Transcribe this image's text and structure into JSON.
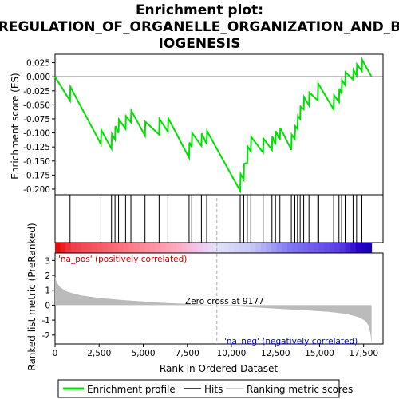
{
  "chart_data": {
    "type": "line",
    "title_lines": [
      "Enrichment plot:",
      "REGULATION_OF_ORGANELLE_ORGANIZATION_AND_B",
      "IOGENESIS"
    ],
    "enrichment_panel": {
      "ylabel": "Enrichment score (ES)",
      "ylim": [
        -0.21,
        0.04
      ],
      "xlim": [
        0,
        18600
      ],
      "yticks": [
        0.025,
        0.0,
        -0.025,
        -0.05,
        -0.075,
        -0.1,
        -0.125,
        -0.15,
        -0.175,
        -0.2
      ],
      "ytick_labels": [
        "0.025",
        "0.000",
        "-0.025",
        "-0.050",
        "-0.075",
        "-0.100",
        "-0.125",
        "-0.150",
        "-0.175",
        "-0.200"
      ],
      "line_color": "#00e000",
      "es_curve": {
        "x": [
          0,
          850,
          870,
          2600,
          2620,
          3200,
          3220,
          3400,
          3420,
          3600,
          3620,
          4000,
          4020,
          4300,
          4320,
          5100,
          5120,
          5900,
          5920,
          6400,
          6420,
          7600,
          7620,
          7750,
          7770,
          8300,
          8320,
          8600,
          8620,
          10500,
          10520,
          10700,
          10720,
          10900,
          10920,
          11100,
          11120,
          11800,
          11820,
          12300,
          12320,
          12500,
          12520,
          12750,
          12770,
          13400,
          13420,
          13600,
          13620,
          13750,
          13770,
          13900,
          13920,
          14100,
          14120,
          14400,
          14420,
          14900,
          14920,
          15800,
          15820,
          16100,
          16120,
          16250,
          16270,
          16450,
          16470,
          16900,
          16920,
          17100,
          17120,
          17400,
          17420,
          17950
        ],
        "y": [
          0.0,
          -0.043,
          -0.018,
          -0.12,
          -0.095,
          -0.128,
          -0.102,
          -0.112,
          -0.088,
          -0.1,
          -0.076,
          -0.093,
          -0.07,
          -0.081,
          -0.06,
          -0.105,
          -0.08,
          -0.103,
          -0.075,
          -0.098,
          -0.074,
          -0.144,
          -0.117,
          -0.125,
          -0.1,
          -0.123,
          -0.101,
          -0.12,
          -0.097,
          -0.203,
          -0.173,
          -0.183,
          -0.155,
          -0.153,
          -0.124,
          -0.133,
          -0.107,
          -0.135,
          -0.11,
          -0.13,
          -0.106,
          -0.121,
          -0.097,
          -0.113,
          -0.091,
          -0.13,
          -0.103,
          -0.111,
          -0.088,
          -0.093,
          -0.07,
          -0.075,
          -0.053,
          -0.058,
          -0.036,
          -0.051,
          -0.028,
          -0.042,
          -0.012,
          -0.058,
          -0.033,
          -0.045,
          -0.021,
          -0.03,
          -0.006,
          -0.015,
          0.008,
          -0.005,
          0.012,
          0.002,
          0.022,
          0.01,
          0.03,
          0.0
        ]
      }
    },
    "hits_panel": {
      "hit_positions": [
        850,
        2600,
        3200,
        3400,
        3600,
        4000,
        4300,
        5100,
        5900,
        6400,
        7600,
        7750,
        8300,
        8600,
        10500,
        10700,
        10900,
        11100,
        11800,
        12300,
        12500,
        12750,
        13400,
        13600,
        13750,
        13900,
        14100,
        14400,
        14900,
        14950,
        15800,
        16100,
        16250,
        16450,
        16900,
        17100,
        17400
      ]
    },
    "metric_panel": {
      "ylabel": "Ranked list metric (PreRanked)",
      "xlabel": "Rank in Ordered Dataset",
      "ylim": [
        -2.6,
        3.5
      ],
      "yticks": [
        3,
        2,
        1,
        0,
        -1,
        -2
      ],
      "ytick_labels": [
        "3",
        "2",
        "1",
        "0",
        "-1",
        "-2"
      ],
      "xticks": [
        0,
        2500,
        5000,
        7500,
        10000,
        12500,
        15000,
        17500
      ],
      "xtick_labels": [
        "0",
        "2,500",
        "5,000",
        "7,500",
        "10,000",
        "12,500",
        "15,000",
        "17,500"
      ],
      "zero_cross": 9177,
      "zero_cross_label": "Zero cross at 9177",
      "pos_label": "'na_pos' (positively correlated)",
      "neg_label": "'na_neg' (negatively correlated)",
      "n_genes": 17950,
      "metric_curve": {
        "rank": [
          0,
          100,
          300,
          600,
          1000,
          1500,
          2500,
          4000,
          6000,
          9177,
          12000,
          14000,
          15500,
          16500,
          17200,
          17600,
          17800,
          17900,
          17950
        ],
        "value": [
          1.9,
          1.5,
          1.2,
          0.95,
          0.8,
          0.65,
          0.48,
          0.33,
          0.16,
          0.0,
          -0.2,
          -0.33,
          -0.45,
          -0.58,
          -0.8,
          -1.05,
          -1.4,
          -2.0,
          -2.6
        ]
      }
    },
    "legend": {
      "entries": [
        "Enrichment profile",
        "Hits",
        "Ranking metric scores"
      ],
      "colors": [
        "#00e000",
        "#000000",
        "#bbbbbb"
      ]
    }
  }
}
